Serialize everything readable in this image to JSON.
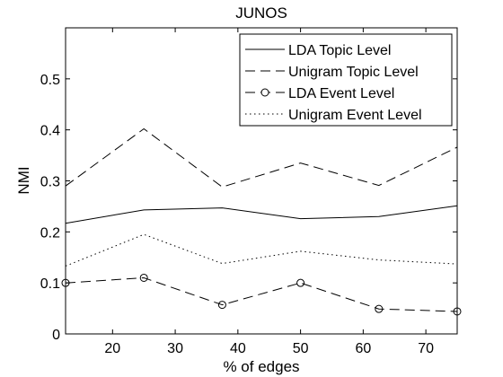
{
  "chart_data": {
    "type": "line",
    "title": "JUNOS",
    "xlabel": "% of edges",
    "ylabel": "NMI",
    "xlim": [
      12.5,
      75
    ],
    "ylim": [
      0,
      0.6
    ],
    "xticks": [
      20,
      30,
      40,
      50,
      60,
      70
    ],
    "yticks": [
      0,
      0.1,
      0.2,
      0.3,
      0.4,
      0.5
    ],
    "xtick_labels": [
      "20",
      "30",
      "40",
      "50",
      "60",
      "70"
    ],
    "ytick_labels": [
      "0",
      "0.1",
      "0.2",
      "0.3",
      "0.4",
      "0.5"
    ],
    "grid": false,
    "legend_position": "top-right",
    "x": [
      12.5,
      25,
      37.5,
      50,
      62.5,
      75
    ],
    "series": [
      {
        "name": "LDA Topic Level",
        "style": "solid",
        "marker": "none",
        "values": [
          0.217,
          0.243,
          0.247,
          0.226,
          0.23,
          0.251
        ]
      },
      {
        "name": "Unigram Topic Level",
        "style": "dashed",
        "marker": "none",
        "values": [
          0.29,
          0.402,
          0.288,
          0.335,
          0.291,
          0.366
        ]
      },
      {
        "name": "LDA Event Level",
        "style": "dashed",
        "marker": "circle",
        "values": [
          0.1,
          0.11,
          0.057,
          0.1,
          0.049,
          0.044
        ]
      },
      {
        "name": "Unigram Event Level",
        "style": "dotted",
        "marker": "none",
        "values": [
          0.133,
          0.195,
          0.138,
          0.162,
          0.145,
          0.137
        ]
      }
    ]
  }
}
